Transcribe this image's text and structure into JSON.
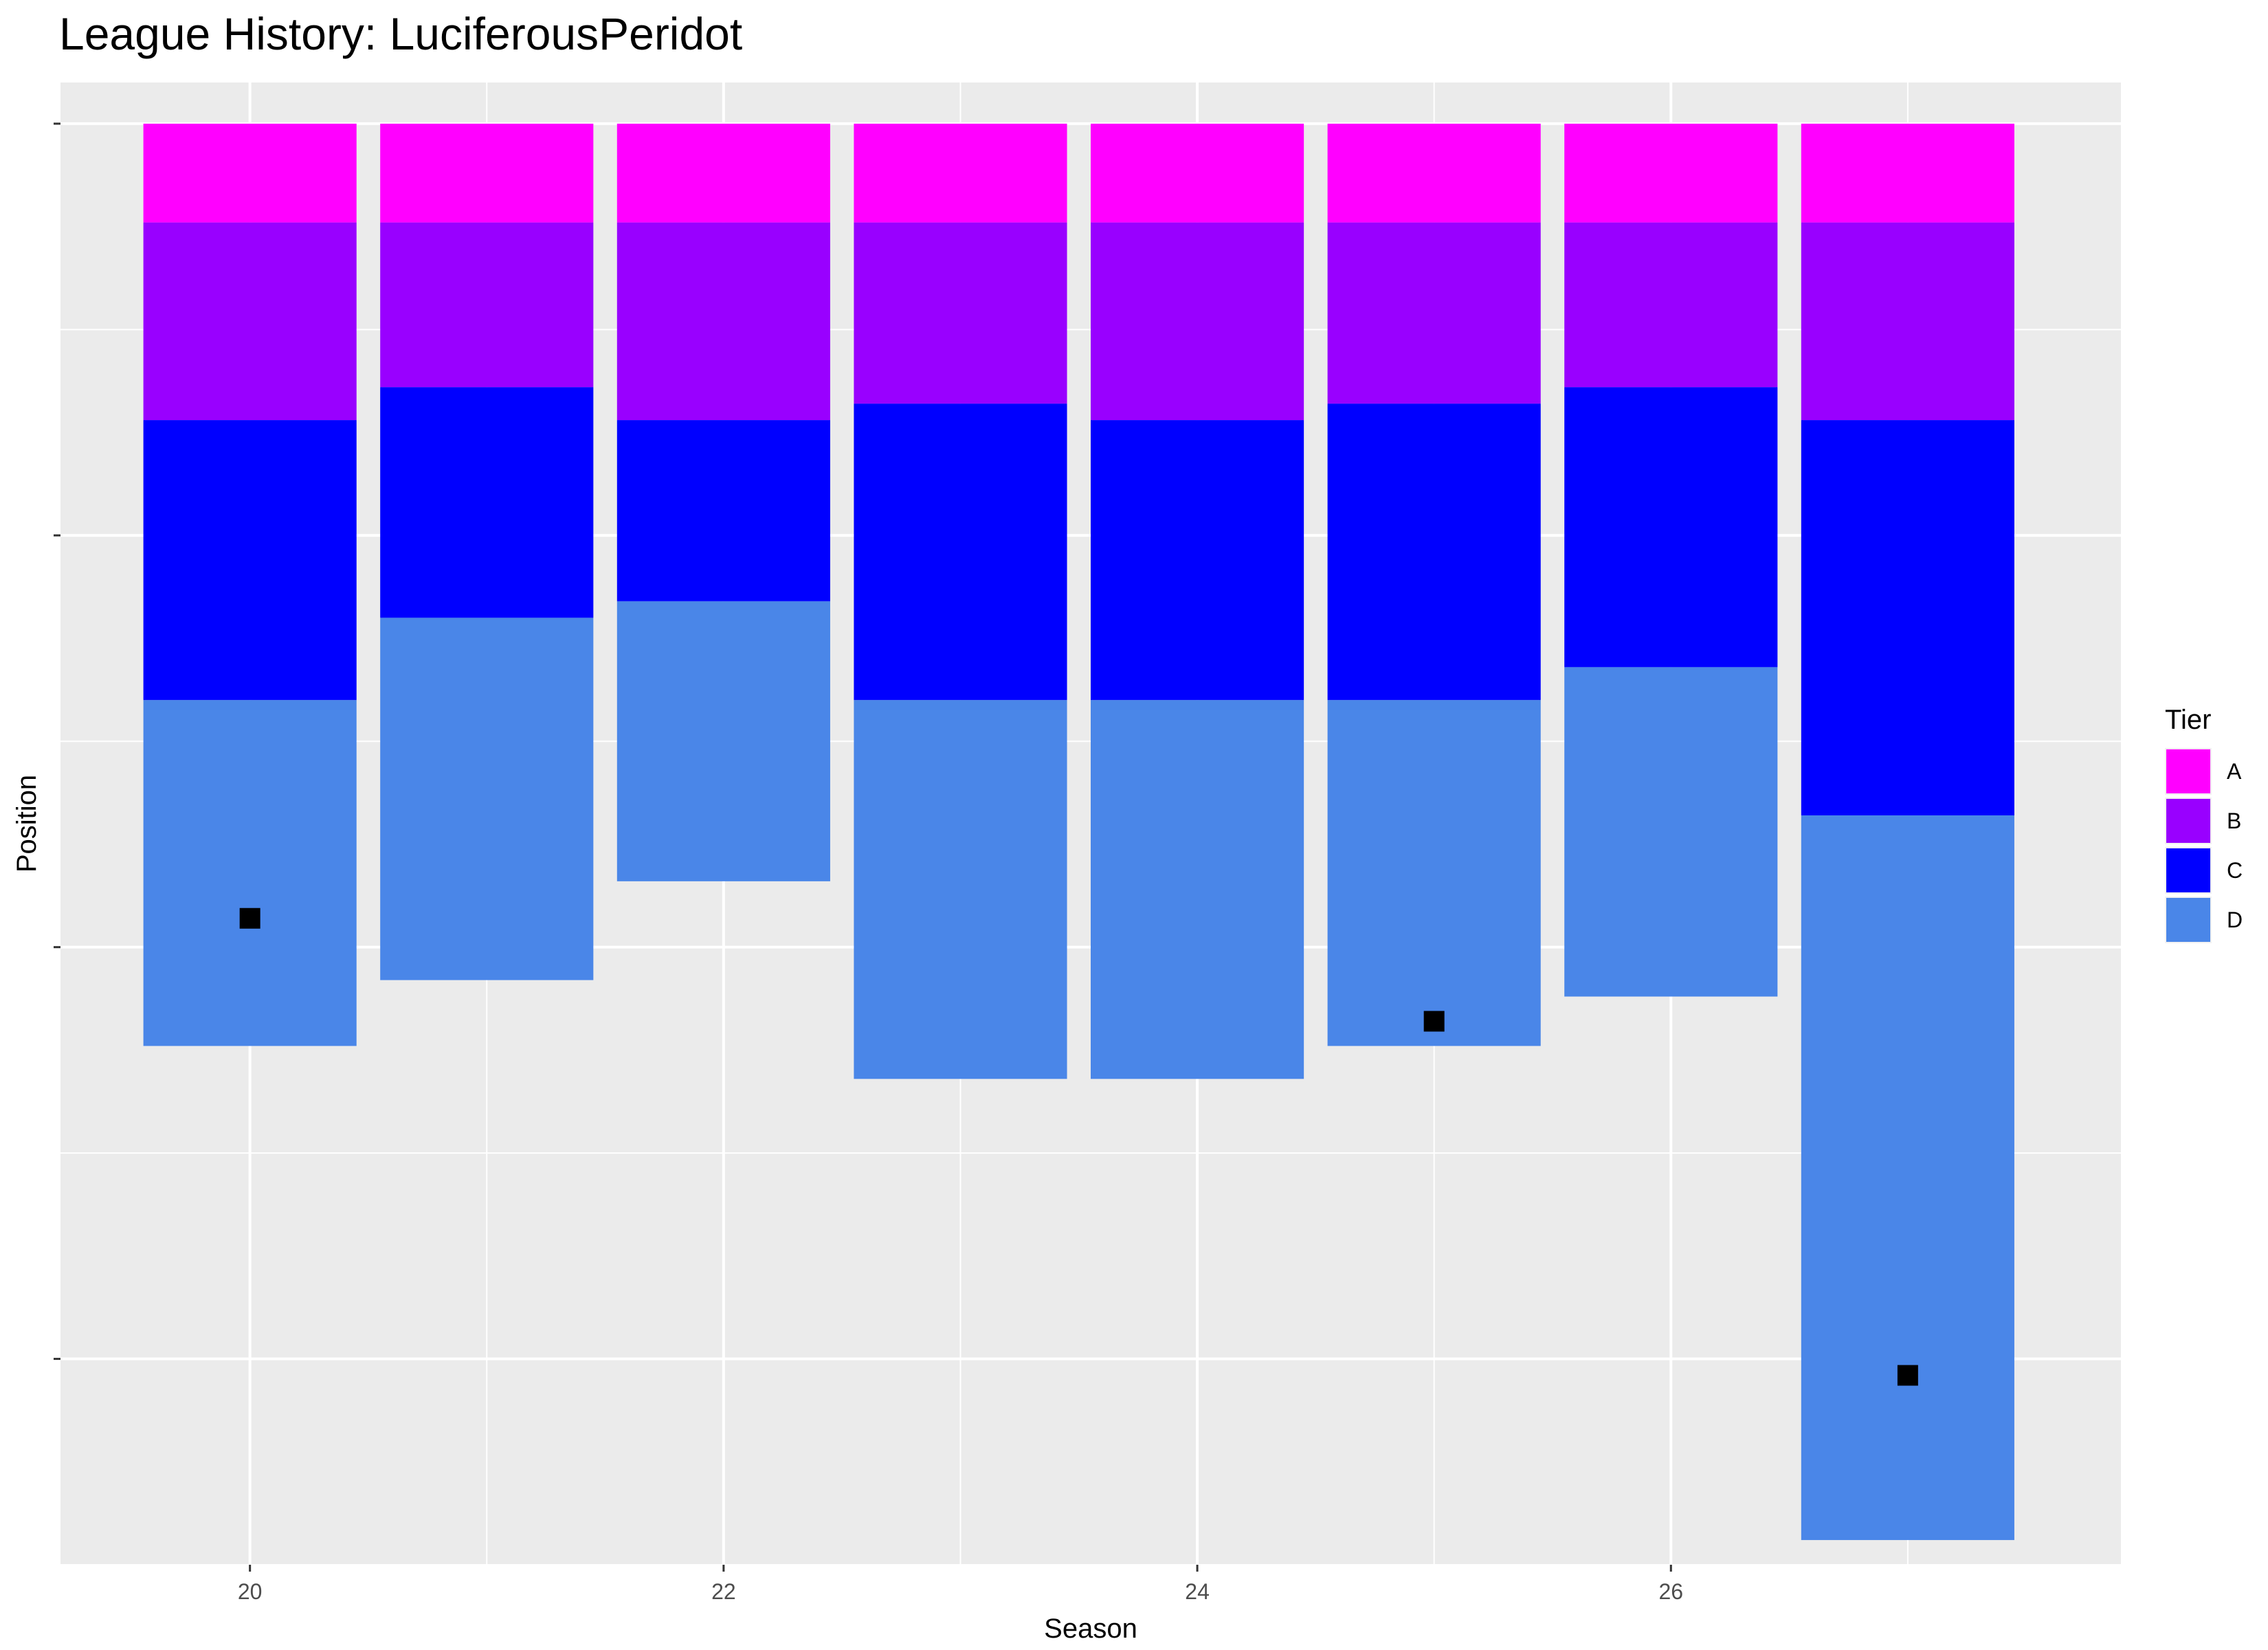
{
  "chart_data": {
    "type": "bar",
    "subtype": "stacked",
    "title": "League History: LuciferousPeridot",
    "xlabel": "Season",
    "ylabel": "Position",
    "x_ticks": [
      20,
      22,
      24,
      26
    ],
    "y_ticks": [
      "",
      "",
      "",
      ""
    ],
    "xlim": [
      19.2,
      27.9
    ],
    "ylim_reversed": [
      -1,
      35
    ],
    "grid": true,
    "legend": {
      "title": "Tier",
      "position": "right",
      "items": [
        {
          "label": "A",
          "color": "#FF00FF"
        },
        {
          "label": "B",
          "color": "#9900FF"
        },
        {
          "label": "C",
          "color": "#0000FF"
        },
        {
          "label": "D",
          "color": "#4A86E8"
        }
      ]
    },
    "seasons": [
      20,
      21,
      22,
      23,
      24,
      25,
      26,
      27
    ],
    "tier_order": [
      "A",
      "B",
      "C",
      "D"
    ],
    "tier_sizes": [
      {
        "season": 20,
        "A": 2.4,
        "B": 4.8,
        "C": 6.8,
        "D": 8.4
      },
      {
        "season": 21,
        "A": 2.4,
        "B": 4.0,
        "C": 5.6,
        "D": 8.8
      },
      {
        "season": 22,
        "A": 2.4,
        "B": 4.8,
        "C": 4.4,
        "D": 6.8
      },
      {
        "season": 23,
        "A": 2.4,
        "B": 4.4,
        "C": 7.2,
        "D": 9.2
      },
      {
        "season": 24,
        "A": 2.4,
        "B": 4.8,
        "C": 6.8,
        "D": 9.2
      },
      {
        "season": 25,
        "A": 2.4,
        "B": 4.4,
        "C": 7.2,
        "D": 8.4
      },
      {
        "season": 26,
        "A": 2.4,
        "B": 4.0,
        "C": 6.8,
        "D": 8.0
      },
      {
        "season": 27,
        "A": 2.4,
        "B": 4.8,
        "C": 9.6,
        "D": 17.6
      }
    ],
    "markers": [
      {
        "season": 20,
        "position": 19.3
      },
      {
        "season": 25,
        "position": 21.8
      },
      {
        "season": 27,
        "position": 30.4
      }
    ],
    "colors": {
      "panel_background": "#EBEBEB",
      "grid": "#FFFFFF",
      "marker": "#000000"
    }
  }
}
